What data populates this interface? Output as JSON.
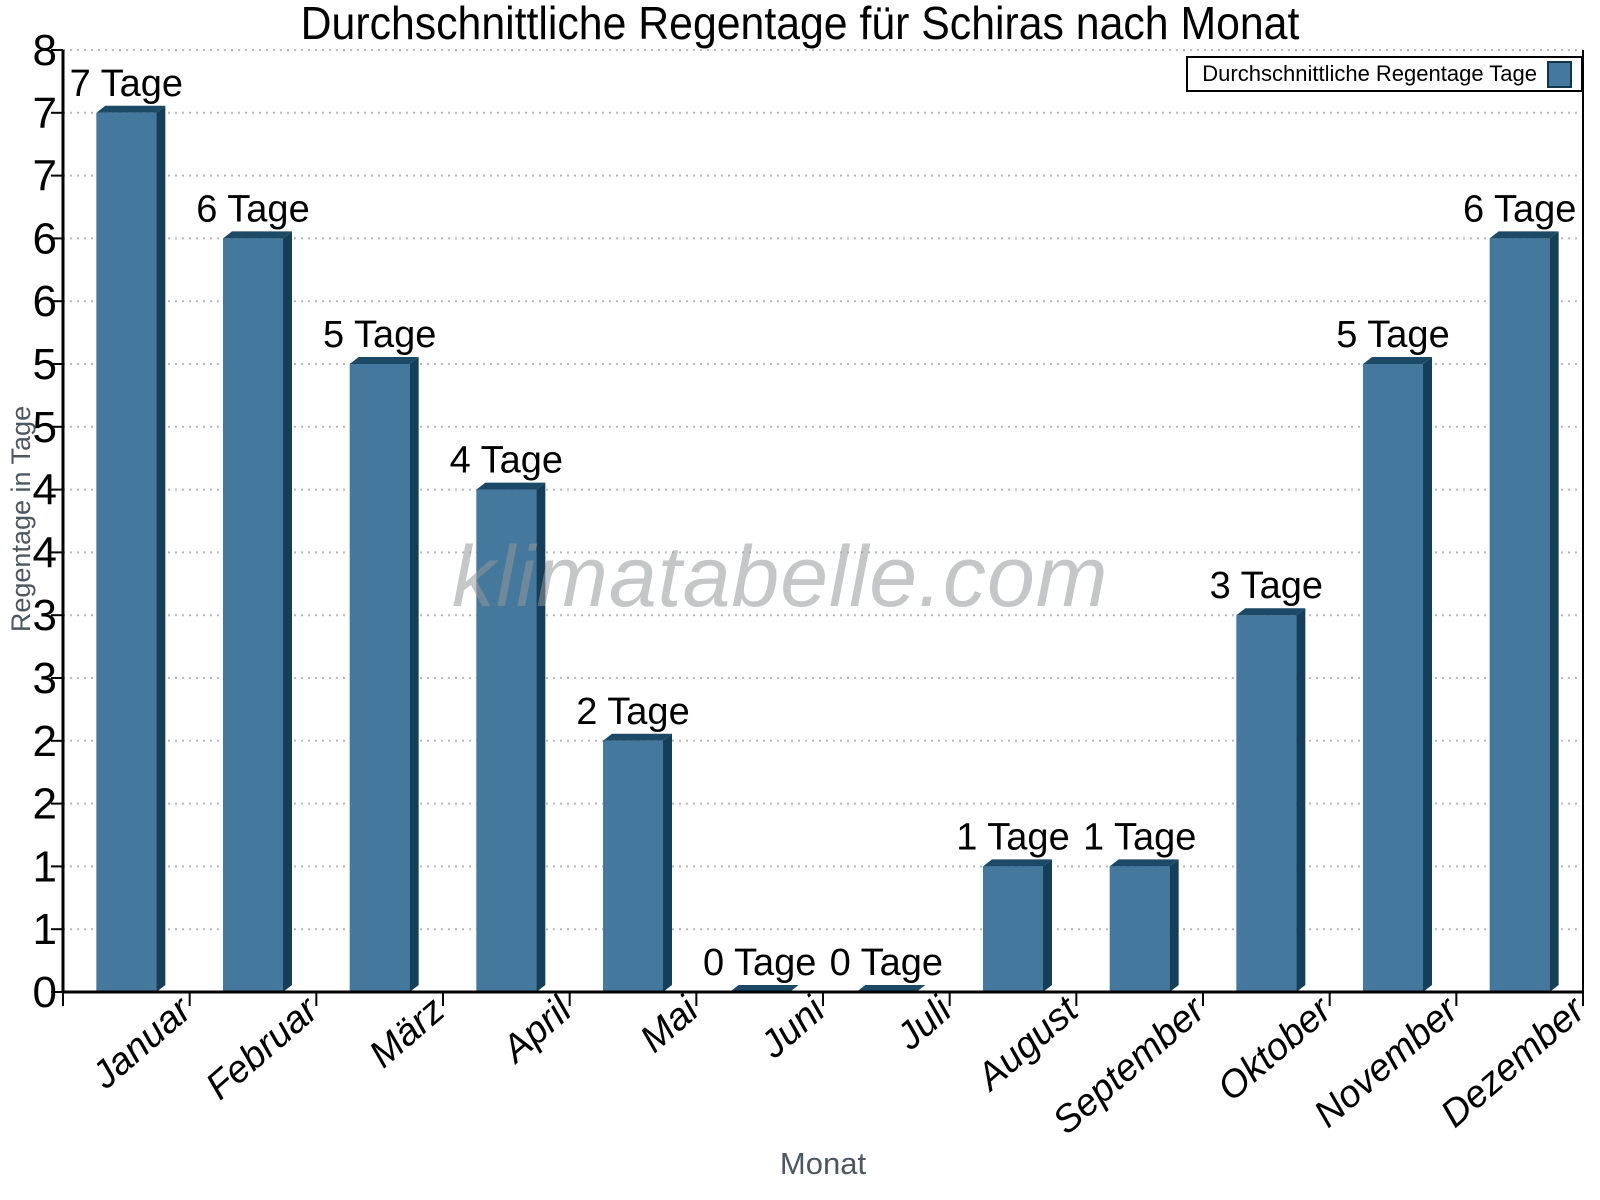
{
  "title": "Durchschnittliche Regentage für Schiras nach Monat",
  "legend": {
    "label": "Durchschnittliche Regentage Tage"
  },
  "watermark": "klimatabelle.com",
  "colors": {
    "bar_face": "#44789c",
    "bar_top": "#1b4966",
    "bar_side": "#153f58",
    "grid": "#b9b9b9",
    "axis": "#000000",
    "axis_title": "#4d5761",
    "tick_label": "#000000",
    "watermark": "#c8c8c8",
    "legend_border": "#000000"
  },
  "chart_data": {
    "type": "bar",
    "title": "Durchschnittliche Regentage für Schiras nach Monat",
    "xlabel": "Monat",
    "ylabel": "Regentage in Tage",
    "categories": [
      "Januar",
      "Februar",
      "März",
      "April",
      "Mai",
      "Juni",
      "Juli",
      "August",
      "September",
      "Oktober",
      "November",
      "Dezember"
    ],
    "values": [
      7,
      6,
      5,
      4,
      2,
      0,
      0,
      1,
      1,
      3,
      5,
      6
    ],
    "bar_labels": [
      "7 Tage",
      "6 Tage",
      "5 Tage",
      "4 Tage",
      "2 Tage",
      "0 Tage",
      "0 Tage",
      "1 Tage",
      "1 Tage",
      "3 Tage",
      "5 Tage",
      "6 Tage"
    ],
    "unit": "Tage",
    "ylim": [
      0,
      8
    ],
    "y_tick_labels_top_to_bottom": [
      "8",
      "7",
      "7",
      "6",
      "6",
      "5",
      "5",
      "4",
      "4",
      "3",
      "3",
      "2",
      "2",
      "1",
      "1",
      "0"
    ],
    "grid": "horizontal-dotted",
    "legend_position": "top-right",
    "legend_entries": [
      "Durchschnittliche Regentage Tage"
    ]
  }
}
